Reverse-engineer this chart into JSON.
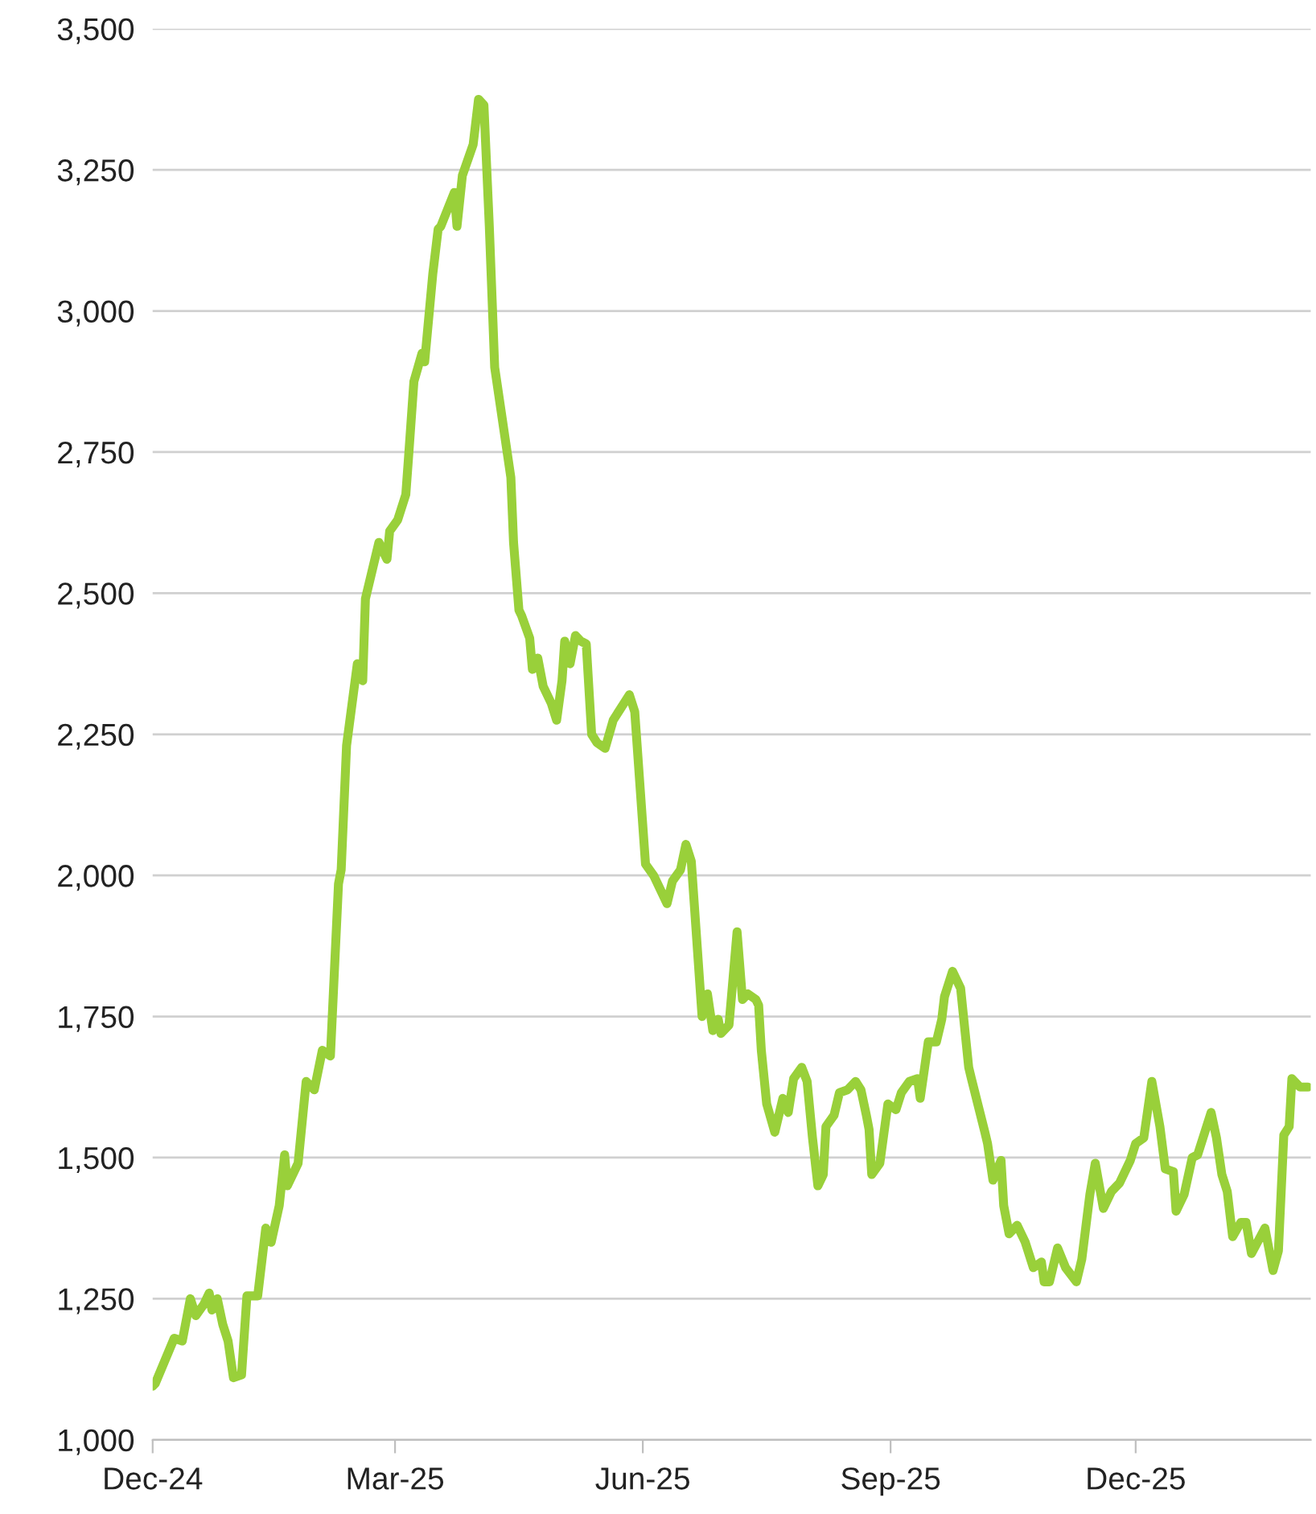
{
  "chart_data": {
    "type": "line",
    "x": [
      "2024-12-01",
      "2024-12-02",
      "2024-12-09",
      "2024-12-12",
      "2024-12-15",
      "2024-12-17",
      "2024-12-20",
      "2024-12-22",
      "2024-12-23",
      "2024-12-25",
      "2024-12-27",
      "2024-12-29",
      "2024-12-31",
      "2025-01-03",
      "2025-01-05",
      "2025-01-09",
      "2025-01-12",
      "2025-01-14",
      "2025-01-17",
      "2025-01-19",
      "2025-01-20",
      "2025-01-24",
      "2025-01-27",
      "2025-01-30",
      "2025-02-02",
      "2025-02-05",
      "2025-02-08",
      "2025-02-09",
      "2025-02-11",
      "2025-02-15",
      "2025-02-17",
      "2025-02-18",
      "2025-02-23",
      "2025-02-26",
      "2025-02-27",
      "2025-03-02",
      "2025-03-05",
      "2025-03-06",
      "2025-03-08",
      "2025-03-11",
      "2025-03-12",
      "2025-03-15",
      "2025-03-17",
      "2025-03-18",
      "2025-03-23",
      "2025-03-24",
      "2025-03-26",
      "2025-03-30",
      "2025-04-01",
      "2025-04-03",
      "2025-04-05",
      "2025-04-07",
      "2025-04-13",
      "2025-04-14",
      "2025-04-16",
      "2025-04-17",
      "2025-04-20",
      "2025-04-21",
      "2025-04-23",
      "2025-04-25",
      "2025-04-28",
      "2025-04-30",
      "2025-05-02",
      "2025-05-03",
      "2025-05-05",
      "2025-05-07",
      "2025-05-09",
      "2025-05-11",
      "2025-05-13",
      "2025-05-15",
      "2025-05-18",
      "2025-05-21",
      "2025-05-25",
      "2025-05-27",
      "2025-05-29",
      "2025-06-02",
      "2025-06-05",
      "2025-06-10",
      "2025-06-12",
      "2025-06-15",
      "2025-06-17",
      "2025-06-19",
      "2025-06-23",
      "2025-06-25",
      "2025-06-27",
      "2025-06-29",
      "2025-06-30",
      "2025-07-03",
      "2025-07-06",
      "2025-07-08",
      "2025-07-10",
      "2025-07-13",
      "2025-07-14",
      "2025-07-15",
      "2025-07-17",
      "2025-07-20",
      "2025-07-23",
      "2025-07-25",
      "2025-07-27",
      "2025-07-30",
      "2025-08-01",
      "2025-08-03",
      "2025-08-05",
      "2025-08-07",
      "2025-08-08",
      "2025-08-11",
      "2025-08-13",
      "2025-08-16",
      "2025-08-19",
      "2025-08-21",
      "2025-08-23",
      "2025-08-24",
      "2025-08-25",
      "2025-08-28",
      "2025-08-31",
      "2025-09-03",
      "2025-09-05",
      "2025-09-08",
      "2025-09-11",
      "2025-09-12",
      "2025-09-15",
      "2025-09-18",
      "2025-09-20",
      "2025-09-21",
      "2025-09-24",
      "2025-09-27",
      "2025-09-30",
      "2025-10-01",
      "2025-10-06",
      "2025-10-07",
      "2025-10-09",
      "2025-10-12",
      "2025-10-13",
      "2025-10-15",
      "2025-10-18",
      "2025-10-21",
      "2025-10-24",
      "2025-10-27",
      "2025-10-28",
      "2025-10-30",
      "2025-11-02",
      "2025-11-05",
      "2025-11-09",
      "2025-11-11",
      "2025-11-14",
      "2025-11-16",
      "2025-11-19",
      "2025-11-22",
      "2025-11-25",
      "2025-11-29",
      "2025-12-01",
      "2025-12-04",
      "2025-12-07",
      "2025-12-10",
      "2025-12-12",
      "2025-12-15",
      "2025-12-16",
      "2025-12-19",
      "2025-12-22",
      "2025-12-24",
      "2025-12-26",
      "2025-12-29",
      "2025-12-31",
      "2026-01-02",
      "2026-01-04",
      "2026-01-06",
      "2026-01-09",
      "2026-01-11",
      "2026-01-13",
      "2026-01-18",
      "2026-01-21",
      "2026-01-23",
      "2026-01-25",
      "2026-01-27",
      "2026-01-28",
      "2026-01-31",
      "2026-02-03"
    ],
    "series": [
      {
        "color": "#99d03a",
        "values": [
          1095,
          1100,
          1180,
          1175,
          1250,
          1220,
          1240,
          1260,
          1230,
          1250,
          1205,
          1175,
          1110,
          1115,
          1255,
          1255,
          1375,
          1350,
          1415,
          1505,
          1450,
          1490,
          1635,
          1620,
          1690,
          1680,
          1985,
          2010,
          2230,
          2375,
          2345,
          2490,
          2590,
          2560,
          2610,
          2630,
          2675,
          2740,
          2875,
          2925,
          2910,
          3065,
          3145,
          3150,
          3210,
          3150,
          3240,
          3295,
          3375,
          3365,
          3150,
          2900,
          2705,
          2590,
          2470,
          2460,
          2420,
          2365,
          2385,
          2335,
          2305,
          2275,
          2345,
          2415,
          2375,
          2425,
          2415,
          2410,
          2250,
          2235,
          2225,
          2275,
          2305,
          2320,
          2290,
          2020,
          2000,
          1950,
          1990,
          2010,
          2055,
          2025,
          1750,
          1790,
          1725,
          1745,
          1720,
          1735,
          1900,
          1780,
          1790,
          1780,
          1770,
          1690,
          1595,
          1545,
          1605,
          1580,
          1640,
          1660,
          1635,
          1535,
          1450,
          1470,
          1555,
          1575,
          1615,
          1620,
          1635,
          1620,
          1575,
          1550,
          1470,
          1490,
          1595,
          1585,
          1615,
          1635,
          1640,
          1605,
          1705,
          1705,
          1745,
          1785,
          1830,
          1800,
          1660,
          1640,
          1545,
          1525,
          1460,
          1495,
          1415,
          1365,
          1380,
          1350,
          1305,
          1315,
          1280,
          1280,
          1340,
          1305,
          1280,
          1320,
          1435,
          1490,
          1410,
          1440,
          1455,
          1495,
          1525,
          1535,
          1635,
          1555,
          1480,
          1475,
          1405,
          1435,
          1500,
          1505,
          1535,
          1580,
          1535,
          1470,
          1440,
          1360,
          1385,
          1385,
          1330,
          1375,
          1300,
          1335,
          1540,
          1555,
          1640,
          1625,
          1625
        ]
      }
    ],
    "xlim": [
      "2024-12-01",
      "2026-02-04"
    ],
    "xticks": [
      {
        "value": "2024-12-01",
        "label": "Dec-24"
      },
      {
        "value": "2025-03-01",
        "label": "Mar-25"
      },
      {
        "value": "2025-06-01",
        "label": "Jun-25"
      },
      {
        "value": "2025-09-01",
        "label": "Sep-25"
      },
      {
        "value": "2025-12-01",
        "label": "Dec-25"
      }
    ],
    "ylim": [
      1000,
      3500
    ],
    "yticks": [
      {
        "value": 1000,
        "label": "1,000"
      },
      {
        "value": 1250,
        "label": "1,250"
      },
      {
        "value": 1500,
        "label": "1,500"
      },
      {
        "value": 1750,
        "label": "1,750"
      },
      {
        "value": 2000,
        "label": "2,000"
      },
      {
        "value": 2250,
        "label": "2,250"
      },
      {
        "value": 2500,
        "label": "2,500"
      },
      {
        "value": 2750,
        "label": "2,750"
      },
      {
        "value": 3000,
        "label": "3,000"
      },
      {
        "value": 3250,
        "label": "3,250"
      },
      {
        "value": 3500,
        "label": "3,500"
      }
    ],
    "grid": "y",
    "line_style": "solid"
  }
}
